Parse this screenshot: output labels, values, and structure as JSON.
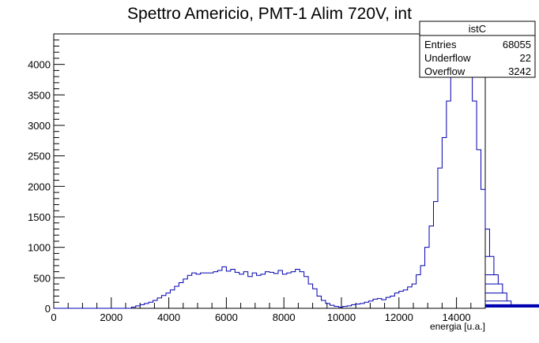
{
  "chart_data": {
    "type": "histogram",
    "title": "Spettro Americio, PMT-1 Alim 720V, int",
    "xlabel": "energia [u.a.]",
    "ylabel": "",
    "xlim": [
      0,
      15000
    ],
    "ylim": [
      0,
      4500
    ],
    "x_ticks": [
      0,
      2000,
      4000,
      6000,
      8000,
      10000,
      12000,
      14000
    ],
    "y_ticks": [
      0,
      500,
      1000,
      1500,
      2000,
      2500,
      3000,
      3500,
      4000
    ],
    "bin_width": 150,
    "bin_start": 0,
    "bin_counts": [
      0,
      0,
      0,
      0,
      0,
      0,
      0,
      0,
      0,
      0,
      0,
      0,
      0,
      0,
      0,
      0,
      0,
      0,
      20,
      40,
      60,
      80,
      100,
      130,
      170,
      210,
      250,
      300,
      360,
      420,
      480,
      540,
      580,
      560,
      580,
      580,
      580,
      600,
      620,
      680,
      610,
      640,
      590,
      560,
      600,
      520,
      580,
      540,
      560,
      600,
      590,
      570,
      620,
      560,
      580,
      600,
      640,
      600,
      520,
      400,
      320,
      200,
      130,
      80,
      50,
      30,
      20,
      30,
      40,
      60,
      70,
      80,
      100,
      120,
      150,
      160,
      140,
      180,
      200,
      250,
      280,
      300,
      350,
      400,
      550,
      700,
      1000,
      1350,
      1750,
      2300,
      2800,
      3400,
      3900,
      4200,
      4250,
      4200,
      3900,
      3400,
      2600,
      1950,
      1300,
      850,
      550,
      400,
      250,
      120,
      60,
      30,
      25,
      20,
      25,
      35,
      40,
      45,
      50,
      60,
      35,
      25,
      20
    ],
    "series_color": "#0000b0",
    "stats": {
      "name": "istC",
      "rows": [
        {
          "label": "Entries",
          "value": "68055"
        },
        {
          "label": "Underflow",
          "value": "22"
        },
        {
          "label": "Overflow",
          "value": "3242"
        }
      ]
    }
  }
}
